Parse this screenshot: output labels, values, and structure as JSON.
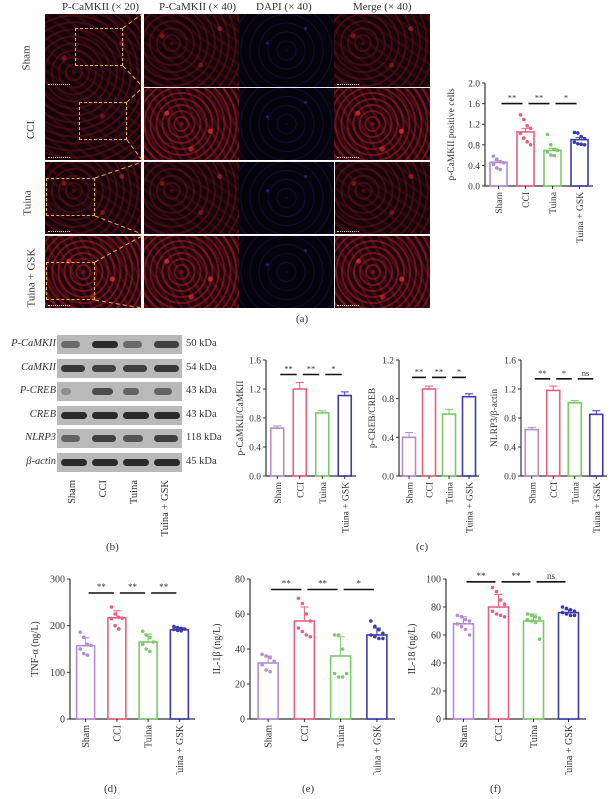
{
  "figure": {
    "panel_labels": {
      "a": "(a)",
      "b": "(b)",
      "c": "(c)",
      "d": "(d)",
      "e": "(e)",
      "f": "(f)"
    }
  },
  "panel_a": {
    "column_headers": [
      "P-CaMKII (× 20)",
      "P-CaMKII (× 40)",
      "DAPI (× 40)",
      "Merge (× 40)"
    ],
    "row_labels": [
      "Sham",
      "CCI",
      "Tuina",
      "Tuina + GSK"
    ],
    "colors": {
      "roi_box": "#e8b13a",
      "p_camkii": "#c81e28",
      "dapi": "#4636c8"
    }
  },
  "panel_b": {
    "proteins": [
      {
        "name": "P-CaMKII",
        "kda": "50 kDa"
      },
      {
        "name": "CaMKII",
        "kda": "54 kDa"
      },
      {
        "name": "P-CREB",
        "kda": "43 kDa"
      },
      {
        "name": "CREB",
        "kda": "43 kDa"
      },
      {
        "name": "NLRP3",
        "kda": "118 kDa"
      },
      {
        "name": "β-actin",
        "kda": "45 kDa"
      }
    ],
    "lanes": [
      "Sham",
      "CCI",
      "Tuina",
      "Tuina + GSK"
    ]
  },
  "group_colors": {
    "Sham": "#b48cd2",
    "CCI": "#e8607e",
    "Tuina": "#7cc86a",
    "Tuina + GSK": "#3c3ca8"
  },
  "chart_data": [
    {
      "id": "a-right",
      "type": "bar",
      "title": "",
      "categories": [
        "Sham",
        "CCI",
        "Tuina",
        "Tuina + GSK"
      ],
      "values": [
        0.46,
        1.05,
        0.69,
        0.9
      ],
      "errors": [
        0.03,
        0.07,
        0.04,
        0.04
      ],
      "points": [
        [
          0.58,
          0.52,
          0.47,
          0.45,
          0.42,
          0.35,
          0.32
        ],
        [
          1.38,
          1.29,
          1.17,
          1.12,
          1.02,
          0.93,
          0.86,
          0.8
        ],
        [
          1.0,
          0.8,
          0.71,
          0.69,
          0.66,
          0.6,
          0.59
        ],
        [
          1.04,
          1.03,
          0.96,
          0.92,
          0.85,
          0.82,
          0.81,
          0.8
        ]
      ],
      "xlabel": "",
      "ylabel": "p-CaMKII positive cells",
      "ylim": [
        0,
        2.0
      ],
      "yticks": [
        "0.0",
        "0.4",
        "0.8",
        "1.2",
        "1.6",
        "2.0"
      ],
      "significance": [
        {
          "pair": [
            "Sham",
            "CCI"
          ],
          "label": "**"
        },
        {
          "pair": [
            "CCI",
            "Tuina"
          ],
          "label": "**"
        },
        {
          "pair": [
            "Tuina",
            "Tuina + GSK"
          ],
          "label": "*"
        }
      ],
      "grid": false
    },
    {
      "id": "c1",
      "type": "bar",
      "categories": [
        "Sham",
        "CCI",
        "Tuina",
        "Tuina + GSK"
      ],
      "values": [
        0.66,
        1.2,
        0.87,
        1.11
      ],
      "errors": [
        0.03,
        0.09,
        0.03,
        0.05
      ],
      "ylabel": "p-CaMKII/CaMKII",
      "ylim": [
        0,
        1.6
      ],
      "yticks": [
        "0.0",
        "0.4",
        "0.8",
        "1.2",
        "1.6"
      ],
      "significance": [
        {
          "pair": [
            "Sham",
            "CCI"
          ],
          "label": "**"
        },
        {
          "pair": [
            "CCI",
            "Tuina"
          ],
          "label": "**"
        },
        {
          "pair": [
            "Tuina",
            "Tuina + GSK"
          ],
          "label": "*"
        }
      ]
    },
    {
      "id": "c2",
      "type": "bar",
      "categories": [
        "Sham",
        "CCI",
        "Tuina",
        "Tuina + GSK"
      ],
      "values": [
        0.4,
        0.9,
        0.64,
        0.82
      ],
      "errors": [
        0.05,
        0.03,
        0.05,
        0.03
      ],
      "ylabel": "p-CREB/CREB",
      "ylim": [
        0,
        1.2
      ],
      "yticks": [
        "0.0",
        "0.4",
        "0.8",
        "1.2"
      ],
      "significance": [
        {
          "pair": [
            "Sham",
            "CCI"
          ],
          "label": "**"
        },
        {
          "pair": [
            "CCI",
            "Tuina"
          ],
          "label": "**"
        },
        {
          "pair": [
            "Tuina",
            "Tuina + GSK"
          ],
          "label": "*"
        }
      ]
    },
    {
      "id": "c3",
      "type": "bar",
      "categories": [
        "Sham",
        "CCI",
        "Tuina",
        "Tuina + GSK"
      ],
      "values": [
        0.64,
        1.18,
        1.01,
        0.85
      ],
      "errors": [
        0.03,
        0.06,
        0.03,
        0.05
      ],
      "ylabel": "NLRP3/β-actin",
      "ylim": [
        0,
        1.6
      ],
      "yticks": [
        "0.0",
        "0.4",
        "0.8",
        "1.2",
        "1.6"
      ],
      "significance": [
        {
          "pair": [
            "Sham",
            "CCI"
          ],
          "label": "**"
        },
        {
          "pair": [
            "CCI",
            "Tuina"
          ],
          "label": "*"
        },
        {
          "pair": [
            "Tuina",
            "Tuina + GSK"
          ],
          "label": "ns"
        }
      ]
    },
    {
      "id": "d",
      "type": "bar",
      "categories": [
        "Sham",
        "CCI",
        "Tuina",
        "Tuina + GSK"
      ],
      "values": [
        157,
        217,
        165,
        191
      ],
      "errors": [
        17,
        15,
        17,
        5
      ],
      "points": [
        [
          186,
          175,
          160,
          158,
          150,
          140,
          137
        ],
        [
          240,
          225,
          218,
          216,
          215,
          200,
          193
        ],
        [
          188,
          180,
          175,
          165,
          160,
          150,
          145
        ],
        [
          198,
          196,
          194,
          193,
          192,
          190,
          189
        ]
      ],
      "ylabel": "TNF-α (ng/L)",
      "ylim": [
        0,
        300
      ],
      "yticks": [
        "0",
        "100",
        "200",
        "300"
      ],
      "significance": [
        {
          "pair": [
            "Sham",
            "CCI"
          ],
          "label": "**"
        },
        {
          "pair": [
            "CCI",
            "Tuina"
          ],
          "label": "**"
        },
        {
          "pair": [
            "Tuina",
            "Tuina + GSK"
          ],
          "label": "**"
        }
      ]
    },
    {
      "id": "e",
      "type": "bar",
      "categories": [
        "Sham",
        "CCI",
        "Tuina",
        "Tuina + GSK"
      ],
      "values": [
        32,
        56,
        36,
        48
      ],
      "errors": [
        4,
        8,
        11,
        4
      ],
      "points": [
        [
          37,
          36,
          35,
          33,
          31,
          28,
          27
        ],
        [
          69,
          66,
          60,
          56,
          52,
          50,
          48,
          47
        ],
        [
          48,
          48,
          40,
          26,
          26,
          24,
          24
        ],
        [
          56,
          53,
          51,
          49,
          48,
          47,
          46,
          46
        ]
      ],
      "ylabel": "IL-1β (ng/L)",
      "ylim": [
        0,
        80
      ],
      "yticks": [
        "0",
        "20",
        "40",
        "60",
        "80"
      ],
      "significance": [
        {
          "pair": [
            "Sham",
            "CCI"
          ],
          "label": "**"
        },
        {
          "pair": [
            "CCI",
            "Tuina"
          ],
          "label": "**"
        },
        {
          "pair": [
            "Tuina",
            "Tuina + GSK"
          ],
          "label": "*"
        }
      ]
    },
    {
      "id": "f",
      "type": "bar",
      "categories": [
        "Sham",
        "CCI",
        "Tuina",
        "Tuina + GSK"
      ],
      "values": [
        68,
        80,
        70,
        76
      ],
      "errors": [
        5,
        9,
        5,
        2
      ],
      "points": [
        [
          74,
          73,
          71,
          70,
          68,
          66,
          64,
          60
        ],
        [
          94,
          91,
          85,
          82,
          77,
          75,
          74,
          73
        ],
        [
          75,
          74,
          73,
          72,
          71,
          70,
          69,
          57
        ],
        [
          80,
          79,
          78,
          77,
          76,
          75,
          74,
          74
        ]
      ],
      "ylabel": "IL-18 (ng/L)",
      "ylim": [
        0,
        100
      ],
      "yticks": [
        "0",
        "20",
        "40",
        "60",
        "80",
        "100"
      ],
      "significance": [
        {
          "pair": [
            "Sham",
            "CCI"
          ],
          "label": "**"
        },
        {
          "pair": [
            "CCI",
            "Tuina"
          ],
          "label": "**"
        },
        {
          "pair": [
            "Tuina",
            "Tuina + GSK"
          ],
          "label": "ns"
        }
      ]
    }
  ]
}
